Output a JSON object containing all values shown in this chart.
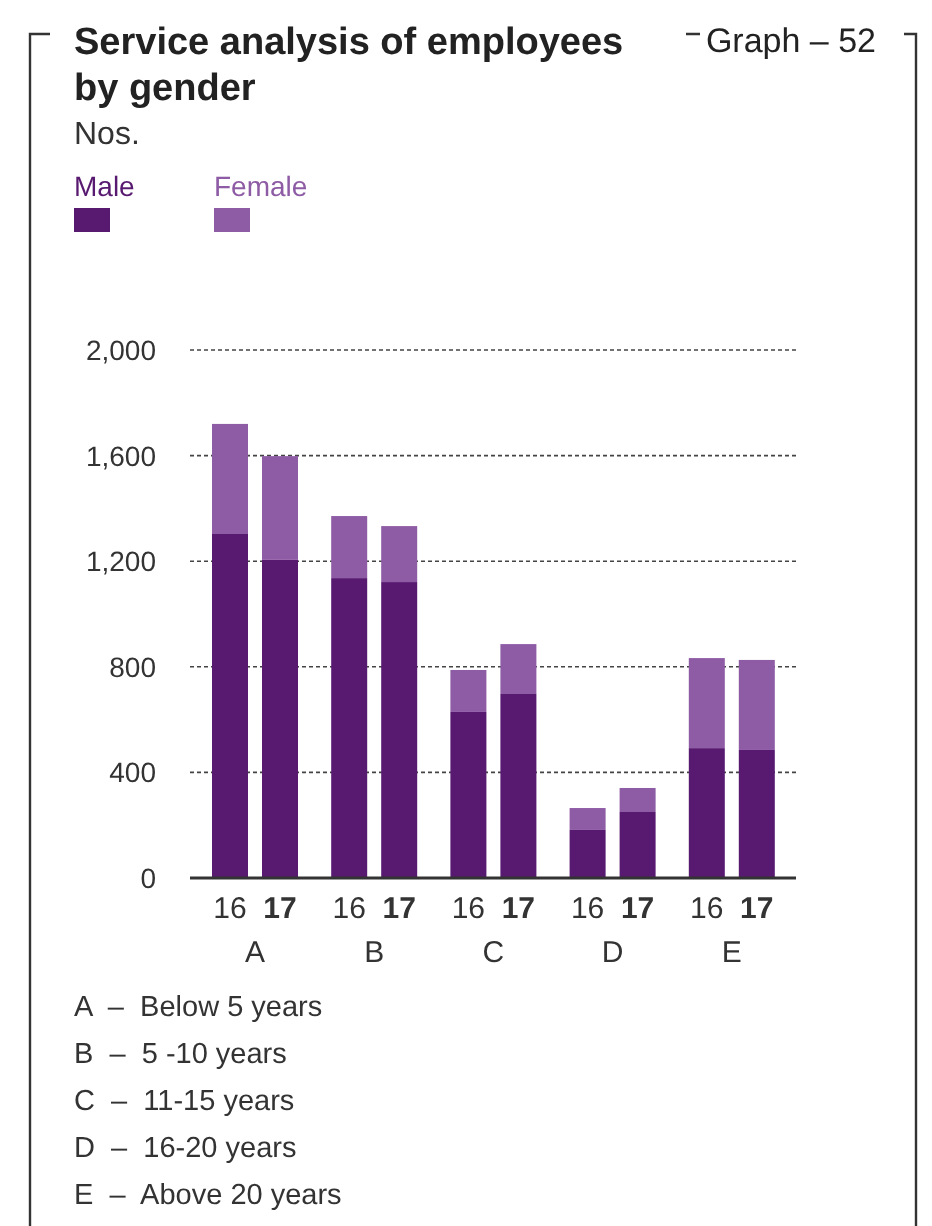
{
  "chart_data": {
    "type": "bar",
    "title": "Service analysis of employees by gender",
    "categories": [
      "16",
      "17",
      "16",
      "17",
      "16",
      "17",
      "16",
      "17",
      "16",
      "17"
    ],
    "series": [
      {
        "name": "Male",
        "color": "#581a70",
        "values": [
          1303,
          1205,
          1136,
          1121,
          629,
          697,
          182,
          250,
          492,
          485
        ]
      },
      {
        "name": "Female",
        "color": "#8e5ba5",
        "values": [
          417,
          393,
          235,
          212,
          159,
          189,
          83,
          91,
          341,
          341
        ]
      }
    ],
    "stacked": true,
    "ylim": [
      0,
      2000
    ],
    "yticks": [
      0,
      400,
      800,
      {
        "value": 1200,
        "label": "1,200"
      },
      {
        "value": 1600,
        "label": "1,600"
      },
      {
        "value": 2000,
        "label": "2,000"
      }
    ],
    "grid": "y",
    "legend": "top left",
    "annotations": [
      "Nos.",
      "Graph – 52",
      "A",
      "B",
      "C",
      "D",
      "E",
      "A  –  Below 5 years",
      "B  –  5 -10 years",
      "C  –  11-15 years",
      "D  –  16-20 years",
      "E  –  Above 20 years"
    ]
  }
}
